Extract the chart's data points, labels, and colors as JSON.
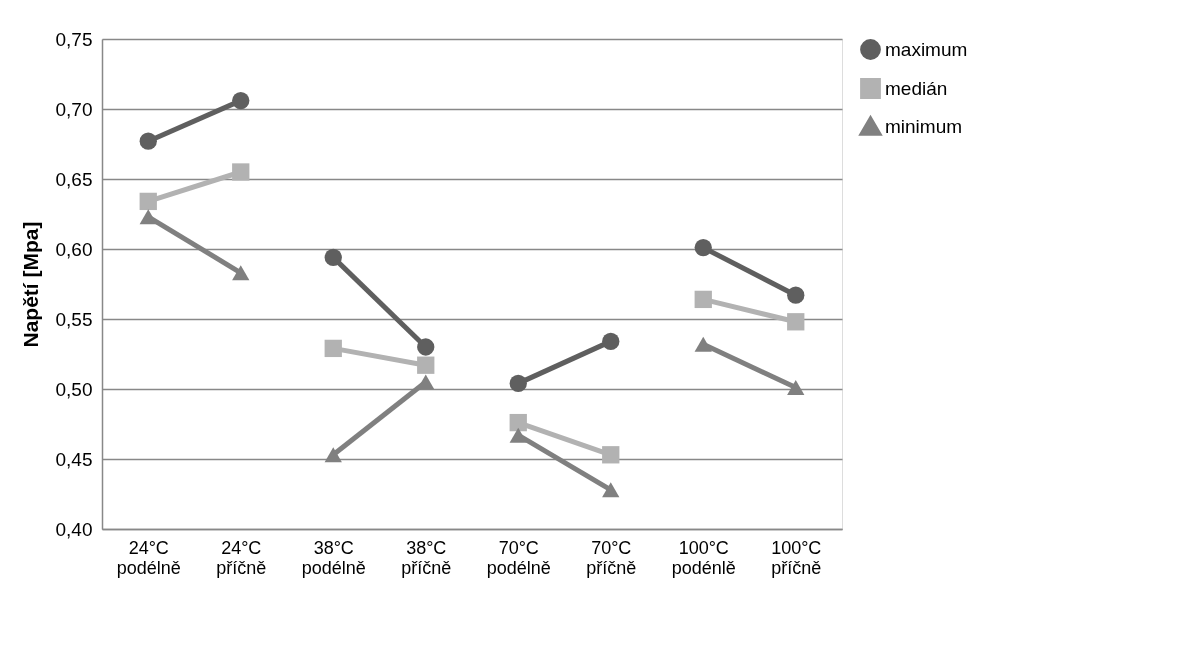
{
  "chart_data": {
    "type": "line",
    "ylabel": "Napětí [Mpa]",
    "categories": [
      "24°C podélně",
      "24°C příčně",
      "38°C podélně",
      "38°C příčně",
      "70°C podélně",
      "70°C příčně",
      "100°C podénlě",
      "100°C příčně"
    ],
    "series": [
      {
        "name": "maximum",
        "color": "#5f5f5f",
        "marker": "circle",
        "values": [
          0.677,
          0.706,
          null,
          null,
          null,
          null,
          null,
          null
        ]
      },
      {
        "color": "#5f5f5f",
        "marker": "circle",
        "values": [
          null,
          null,
          0.594,
          0.53,
          null,
          null,
          null,
          null
        ]
      },
      {
        "color": "#5f5f5f",
        "marker": "circle",
        "values": [
          null,
          null,
          null,
          null,
          0.504,
          0.534,
          null,
          null
        ]
      },
      {
        "color": "#5f5f5f",
        "marker": "circle",
        "values": [
          null,
          null,
          null,
          null,
          null,
          null,
          0.601,
          0.567
        ]
      },
      {
        "name": "medián",
        "color": "#b2b2b2",
        "marker": "square",
        "values": [
          0.634,
          0.655,
          null,
          null,
          null,
          null,
          null,
          null
        ]
      },
      {
        "color": "#b2b2b2",
        "marker": "square",
        "values": [
          null,
          null,
          0.529,
          0.517,
          null,
          null,
          null,
          null
        ]
      },
      {
        "color": "#b2b2b2",
        "marker": "square",
        "values": [
          null,
          null,
          null,
          null,
          0.476,
          0.453,
          null,
          null
        ]
      },
      {
        "color": "#b2b2b2",
        "marker": "square",
        "values": [
          null,
          null,
          null,
          null,
          null,
          null,
          0.564,
          0.548
        ]
      },
      {
        "name": "minimum",
        "color": "#808080",
        "marker": "triangle",
        "values": [
          0.623,
          0.583,
          null,
          null,
          null,
          null,
          null,
          null
        ]
      },
      {
        "color": "#808080",
        "marker": "triangle",
        "values": [
          null,
          null,
          0.453,
          0.505,
          null,
          null,
          null,
          null
        ]
      },
      {
        "color": "#808080",
        "marker": "triangle",
        "values": [
          null,
          null,
          null,
          null,
          0.467,
          0.428,
          null,
          null
        ]
      },
      {
        "color": "#808080",
        "marker": "triangle",
        "values": [
          null,
          null,
          null,
          null,
          null,
          null,
          0.532,
          0.501
        ]
      }
    ],
    "ylim": [
      0.4,
      0.75
    ],
    "yticks": [
      {
        "value": 0.4,
        "label": "0,40"
      },
      {
        "value": 0.45,
        "label": "0,45"
      },
      {
        "value": 0.5,
        "label": "0,50"
      },
      {
        "value": 0.55,
        "label": "0,55"
      },
      {
        "value": 0.6,
        "label": "0,60"
      },
      {
        "value": 0.65,
        "label": "0,65"
      },
      {
        "value": 0.7,
        "label": "0,70"
      },
      {
        "value": 0.75,
        "label": "0,75"
      }
    ],
    "grid": "y",
    "legend": "right",
    "line_style": "solid"
  }
}
